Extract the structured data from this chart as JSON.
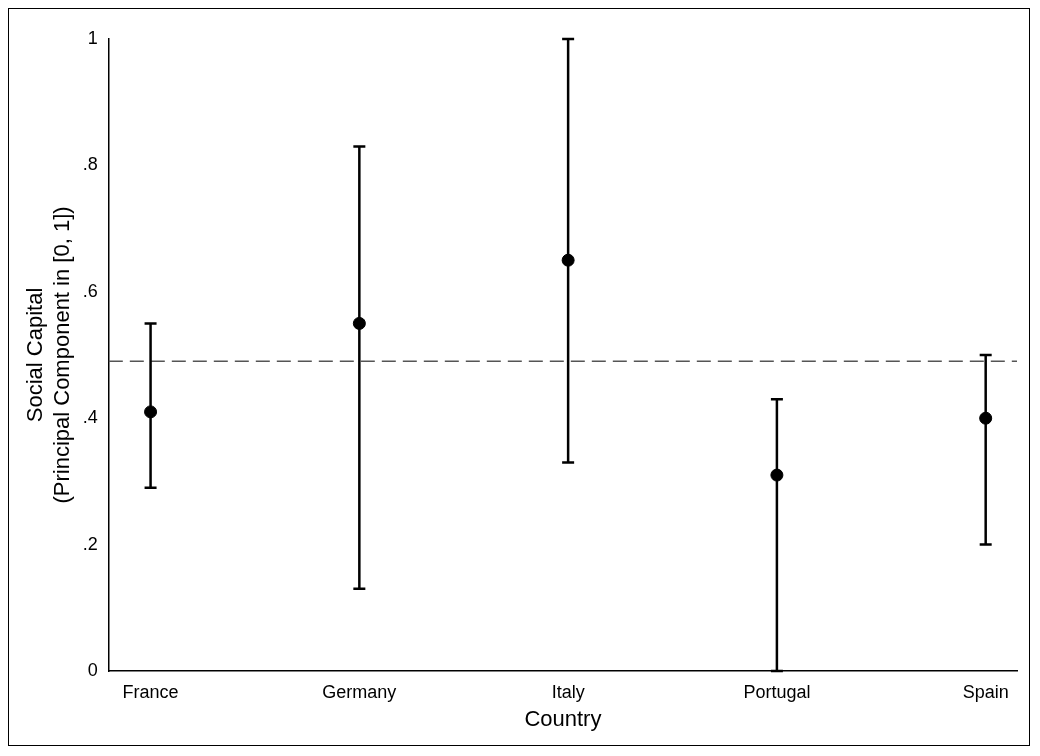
{
  "chart_data": {
    "type": "scatter",
    "xlabel": "Country",
    "ylabel": "Social Capital\n(Principal Component in [0, 1])",
    "categories": [
      "France",
      "Germany",
      "Italy",
      "Portugal",
      "Spain"
    ],
    "values": [
      0.41,
      0.55,
      0.65,
      0.31,
      0.4
    ],
    "errors": [
      [
        0.29,
        0.55
      ],
      [
        0.13,
        0.83
      ],
      [
        0.33,
        1.0
      ],
      [
        0.0,
        0.43
      ],
      [
        0.2,
        0.5
      ]
    ],
    "color": "#000000",
    "marker": "circle",
    "ylim": [
      0,
      1
    ],
    "yticks": [
      {
        "value": 0,
        "label": "0"
      },
      {
        "value": 0.2,
        "label": ".2"
      },
      {
        "value": 0.4,
        "label": ".4"
      },
      {
        "value": 0.6,
        "label": ".6"
      },
      {
        "value": 0.8,
        "label": ".8"
      },
      {
        "value": 1,
        "label": "1"
      }
    ],
    "ref_lines": [
      {
        "axis": "y",
        "value": 0.49,
        "line_style": "dashed",
        "color": "#555555"
      }
    ],
    "grid": false,
    "legend": false
  }
}
